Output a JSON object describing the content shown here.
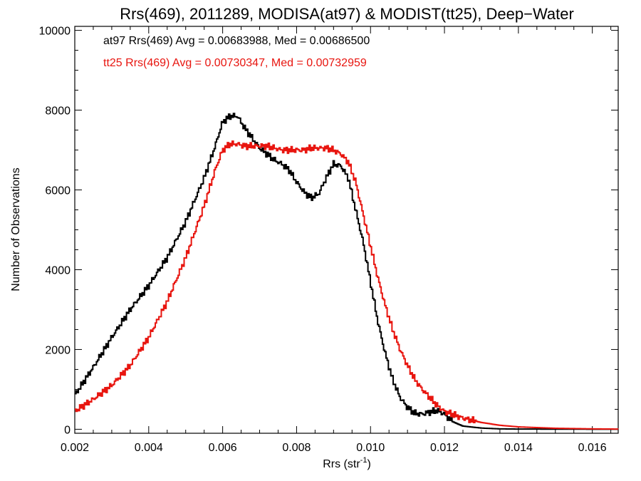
{
  "chart_data": {
    "type": "line",
    "title": "Rrs(469), 2011289, MODISA(at97) & MODIST(tt25), Deep−Water",
    "xlabel": "Rrs (str",
    "xlabel_sup": "-1",
    "xlabel_close": ")",
    "ylabel": "Number of Observations",
    "xlim": [
      0.002,
      0.0167
    ],
    "ylim": [
      -100,
      10100
    ],
    "x_ticks": [
      "0.002",
      "0.004",
      "0.006",
      "0.008",
      "0.010",
      "0.012",
      "0.014",
      "0.016"
    ],
    "y_ticks": [
      "0",
      "2000",
      "4000",
      "6000",
      "8000",
      "10000"
    ],
    "grid": false,
    "series": [
      {
        "name": "at97",
        "annotation": "at97 Rrs(469) Avg = 0.00683988, Med = 0.00686500",
        "color": "#000000",
        "points": [
          [
            0.002,
            850
          ],
          [
            0.0025,
            1550
          ],
          [
            0.003,
            2300
          ],
          [
            0.0035,
            3000
          ],
          [
            0.004,
            3600
          ],
          [
            0.0045,
            4300
          ],
          [
            0.005,
            5200
          ],
          [
            0.0055,
            6300
          ],
          [
            0.0058,
            7100
          ],
          [
            0.006,
            7700
          ],
          [
            0.0062,
            7850
          ],
          [
            0.0064,
            7850
          ],
          [
            0.0066,
            7550
          ],
          [
            0.0068,
            7300
          ],
          [
            0.007,
            7050
          ],
          [
            0.0072,
            6900
          ],
          [
            0.0074,
            6750
          ],
          [
            0.0076,
            6650
          ],
          [
            0.0078,
            6500
          ],
          [
            0.008,
            6200
          ],
          [
            0.0082,
            5950
          ],
          [
            0.0084,
            5800
          ],
          [
            0.0086,
            5900
          ],
          [
            0.0088,
            6300
          ],
          [
            0.009,
            6650
          ],
          [
            0.0092,
            6600
          ],
          [
            0.0094,
            6300
          ],
          [
            0.0096,
            5500
          ],
          [
            0.0098,
            4700
          ],
          [
            0.01,
            3700
          ],
          [
            0.0102,
            2700
          ],
          [
            0.0104,
            1900
          ],
          [
            0.0106,
            1250
          ],
          [
            0.0108,
            800
          ],
          [
            0.011,
            550
          ],
          [
            0.0112,
            400
          ],
          [
            0.0114,
            380
          ],
          [
            0.0116,
            430
          ],
          [
            0.0118,
            470
          ],
          [
            0.012,
            380
          ],
          [
            0.0122,
            200
          ],
          [
            0.0125,
            80
          ],
          [
            0.013,
            30
          ],
          [
            0.0135,
            10
          ],
          [
            0.014,
            5
          ],
          [
            0.0167,
            0
          ]
        ]
      },
      {
        "name": "tt25",
        "annotation": "tt25 Rrs(469) Avg = 0.00730347, Med = 0.00732959",
        "color": "#e8150f",
        "points": [
          [
            0.002,
            450
          ],
          [
            0.0025,
            750
          ],
          [
            0.003,
            1100
          ],
          [
            0.0035,
            1600
          ],
          [
            0.004,
            2300
          ],
          [
            0.0045,
            3200
          ],
          [
            0.005,
            4300
          ],
          [
            0.0055,
            5600
          ],
          [
            0.0058,
            6500
          ],
          [
            0.006,
            7000
          ],
          [
            0.0062,
            7150
          ],
          [
            0.0064,
            7150
          ],
          [
            0.0066,
            7100
          ],
          [
            0.0068,
            7100
          ],
          [
            0.007,
            7100
          ],
          [
            0.0072,
            7100
          ],
          [
            0.0074,
            7050
          ],
          [
            0.0076,
            7000
          ],
          [
            0.0078,
            7000
          ],
          [
            0.008,
            7000
          ],
          [
            0.0082,
            7000
          ],
          [
            0.0084,
            7050
          ],
          [
            0.0086,
            7050
          ],
          [
            0.0088,
            7050
          ],
          [
            0.009,
            7000
          ],
          [
            0.0092,
            6900
          ],
          [
            0.0094,
            6700
          ],
          [
            0.0096,
            6200
          ],
          [
            0.0098,
            5400
          ],
          [
            0.01,
            4600
          ],
          [
            0.0102,
            3800
          ],
          [
            0.0104,
            3100
          ],
          [
            0.0106,
            2500
          ],
          [
            0.0108,
            2000
          ],
          [
            0.011,
            1600
          ],
          [
            0.0112,
            1250
          ],
          [
            0.0114,
            1000
          ],
          [
            0.0116,
            800
          ],
          [
            0.0118,
            600
          ],
          [
            0.012,
            450
          ],
          [
            0.0125,
            280
          ],
          [
            0.013,
            170
          ],
          [
            0.0135,
            100
          ],
          [
            0.014,
            60
          ],
          [
            0.015,
            25
          ],
          [
            0.016,
            10
          ],
          [
            0.0167,
            5
          ]
        ]
      }
    ]
  }
}
